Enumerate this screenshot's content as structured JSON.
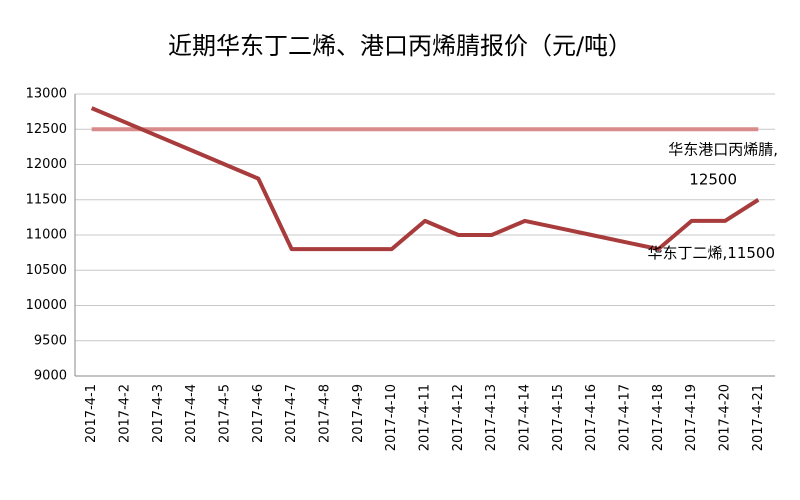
{
  "chart_data": {
    "type": "line",
    "title": "近期华东丁二烯、港口丙烯腈报价（元/吨）",
    "categories": [
      "2017-4-1",
      "2017-4-2",
      "2017-4-3",
      "2017-4-4",
      "2017-4-5",
      "2017-4-6",
      "2017-4-7",
      "2017-4-8",
      "2017-4-9",
      "2017-4-10",
      "2017-4-11",
      "2017-4-12",
      "2017-4-13",
      "2017-4-14",
      "2017-4-15",
      "2017-4-16",
      "2017-4-17",
      "2017-4-18",
      "2017-4-19",
      "2017-4-20",
      "2017-4-21"
    ],
    "series": [
      {
        "name": "华东港口丙烯腈",
        "color": "#d98b8b",
        "values": [
          12500,
          12500,
          12500,
          12500,
          12500,
          12500,
          12500,
          12500,
          12500,
          12500,
          12500,
          12500,
          12500,
          12500,
          12500,
          12500,
          12500,
          12500,
          12500,
          12500,
          12500
        ]
      },
      {
        "name": "华东丁二烯",
        "color": "#a83c3c",
        "values": [
          12800,
          12600,
          12400,
          12200,
          12000,
          11800,
          10800,
          10800,
          10800,
          10800,
          11200,
          11000,
          11000,
          11200,
          11100,
          11000,
          10900,
          10800,
          11200,
          11200,
          11500
        ]
      }
    ],
    "annotations": [
      "华东港口丙烯腈,",
      "华东丁二烯,"
    ],
    "ylim": [
      9000,
      13000
    ],
    "yticks": [
      9000,
      9500,
      10000,
      10500,
      11000,
      11500,
      12000,
      12500,
      13000
    ],
    "grid": true
  }
}
